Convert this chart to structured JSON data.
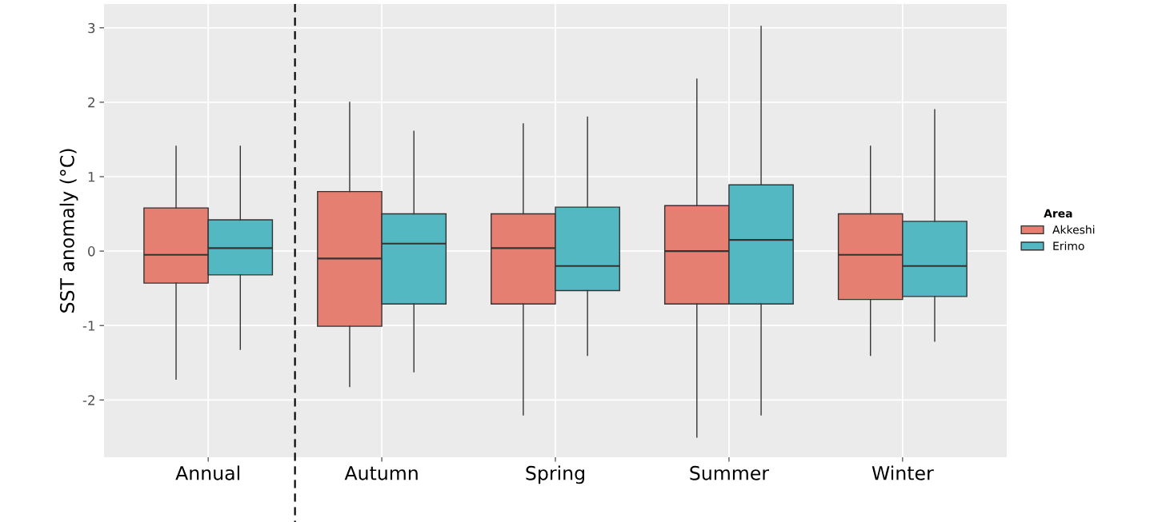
{
  "chart_data": {
    "type": "box",
    "ylabel": "SST anomaly (°C)",
    "legend_title": "Area",
    "legend": "right",
    "grid": true,
    "categories": [
      "Annual",
      "Autumn",
      "Spring",
      "Summer",
      "Winter"
    ],
    "ylim": [
      -2.77,
      3.32
    ],
    "yticks": [
      -2,
      -1,
      0,
      1,
      2,
      3
    ],
    "series": [
      {
        "name": "Akkeshi",
        "color": "#e57f72",
        "boxes": [
          {
            "low": -1.72,
            "q1": -0.43,
            "median": -0.05,
            "q3": 0.58,
            "high": 1.41
          },
          {
            "low": -1.82,
            "q1": -1.01,
            "median": -0.1,
            "q3": 0.8,
            "high": 2.0
          },
          {
            "low": -2.2,
            "q1": -0.71,
            "median": 0.04,
            "q3": 0.5,
            "high": 1.71
          },
          {
            "low": -2.5,
            "q1": -0.71,
            "median": 0.0,
            "q3": 0.61,
            "high": 2.31
          },
          {
            "low": -1.4,
            "q1": -0.65,
            "median": -0.05,
            "q3": 0.5,
            "high": 1.41
          }
        ]
      },
      {
        "name": "Erimo",
        "color": "#53b8c2",
        "boxes": [
          {
            "low": -1.32,
            "q1": -0.32,
            "median": 0.04,
            "q3": 0.42,
            "high": 1.41
          },
          {
            "low": -1.62,
            "q1": -0.71,
            "median": 0.1,
            "q3": 0.5,
            "high": 1.61
          },
          {
            "low": -1.4,
            "q1": -0.53,
            "median": -0.2,
            "q3": 0.59,
            "high": 1.8
          },
          {
            "low": -2.2,
            "q1": -0.71,
            "median": 0.15,
            "q3": 0.89,
            "high": 3.02
          },
          {
            "low": -1.21,
            "q1": -0.61,
            "median": -0.2,
            "q3": 0.4,
            "high": 1.9
          }
        ]
      }
    ]
  }
}
